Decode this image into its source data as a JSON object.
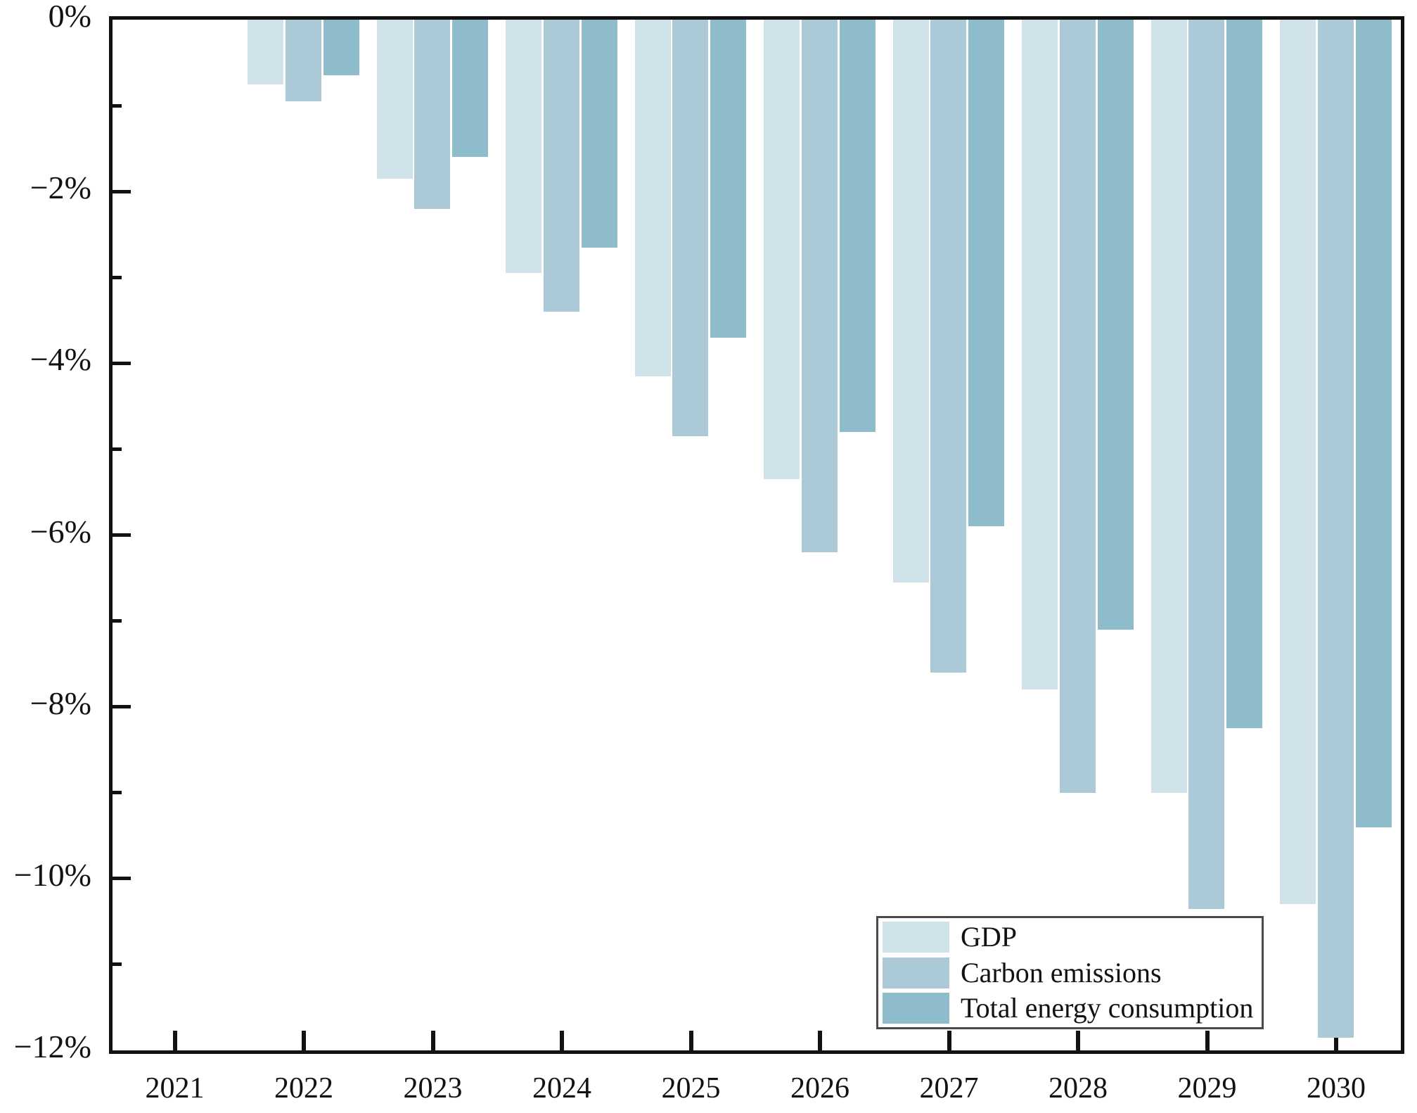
{
  "chart_data": {
    "type": "bar",
    "title": "",
    "xlabel": "",
    "ylabel": "",
    "unit": "%",
    "categories": [
      "2021",
      "2022",
      "2023",
      "2024",
      "2025",
      "2026",
      "2027",
      "2028",
      "2029",
      "2030"
    ],
    "series": [
      {
        "name": "GDP",
        "color": "#cfe2ea",
        "values": [
          0,
          -0.75,
          -1.85,
          -2.95,
          -4.15,
          -5.35,
          -6.55,
          -7.8,
          -9.0,
          -10.3
        ]
      },
      {
        "name": "Carbon emissions",
        "color": "#abc9d6",
        "values": [
          0,
          -0.95,
          -2.2,
          -3.4,
          -4.85,
          -6.2,
          -7.6,
          -9.0,
          -10.35,
          -11.85
        ]
      },
      {
        "name": "Total energy consumption",
        "color": "#8fbccb",
        "values": [
          0,
          -0.65,
          -1.6,
          -2.65,
          -3.7,
          -4.8,
          -5.9,
          -7.1,
          -8.25,
          -9.4
        ]
      }
    ],
    "ylim": [
      -12,
      0
    ],
    "y_ticks": [
      {
        "value": 0,
        "label": "0%"
      },
      {
        "value": -2,
        "label": "−2%"
      },
      {
        "value": -4,
        "label": "−4%"
      },
      {
        "value": -6,
        "label": "−6%"
      },
      {
        "value": -8,
        "label": "−8%"
      },
      {
        "value": -10,
        "label": "−10%"
      },
      {
        "value": -12,
        "label": "−12%"
      }
    ],
    "y_minor_ticks": [
      -1,
      -3,
      -5,
      -7,
      -9,
      -11
    ],
    "grid": false,
    "axis_color": "#121212",
    "legend": {
      "position": "lower-right",
      "entries": [
        "GDP",
        "Carbon emissions",
        "Total energy consumption"
      ]
    }
  }
}
